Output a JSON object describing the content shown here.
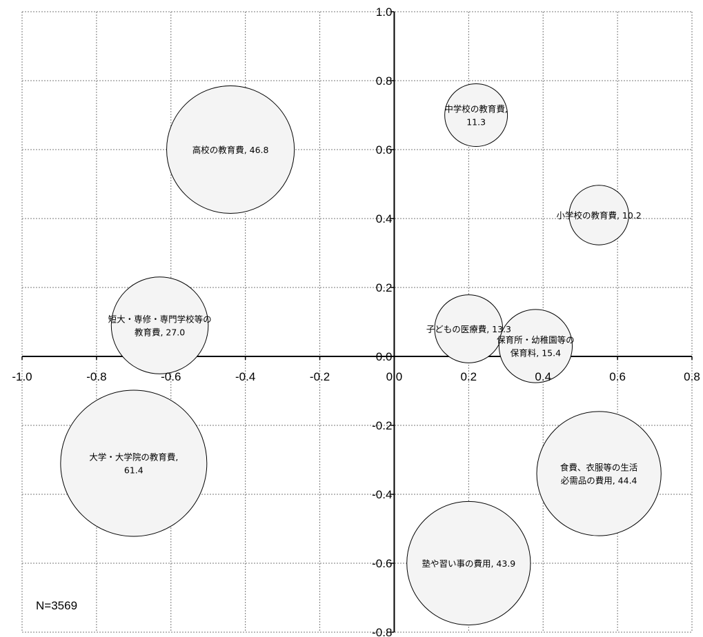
{
  "chart_data": {
    "type": "bubble",
    "title": "",
    "xlabel": "",
    "ylabel": "",
    "xlim": [
      -1.0,
      0.8
    ],
    "ylim": [
      -0.8,
      1.0
    ],
    "x_ticks": [
      "-1.0",
      "-0.8",
      "-0.6",
      "-0.4",
      "-0.2",
      "0.0",
      "0.2",
      "0.4",
      "0.6",
      "0.8"
    ],
    "y_ticks": [
      "1.0",
      "0.8",
      "0.6",
      "0.4",
      "0.2",
      "0.0",
      "-0.2",
      "-0.4",
      "-0.6",
      "-0.8"
    ],
    "grid": true,
    "grid_style": "dotted",
    "series": [
      {
        "bubbles": [
          {
            "label": [
              "高校の教育費, 46.8"
            ],
            "value": 46.8,
            "x": -0.44,
            "y": 0.6
          },
          {
            "label": [
              "中学校の教育費,",
              "11.3"
            ],
            "value": 11.3,
            "x": 0.22,
            "y": 0.7
          },
          {
            "label": [
              "小学校の教育費, 10.2"
            ],
            "value": 10.2,
            "x": 0.55,
            "y": 0.41
          },
          {
            "label": [
              "短大・専修・専門学校等の",
              "教育費, 27.0"
            ],
            "value": 27.0,
            "x": -0.63,
            "y": 0.09
          },
          {
            "label": [
              "子どもの医療費, 13.3"
            ],
            "value": 13.3,
            "x": 0.2,
            "y": 0.08
          },
          {
            "label": [
              "保育所・幼稚園等の",
              "保育料, 15.4"
            ],
            "value": 15.4,
            "x": 0.38,
            "y": 0.03
          },
          {
            "label": [
              "大学・大学院の教育費,",
              "61.4"
            ],
            "value": 61.4,
            "x": -0.7,
            "y": -0.31
          },
          {
            "label": [
              "食費、衣服等の生活",
              "必需品の費用, 44.4"
            ],
            "value": 44.4,
            "x": 0.55,
            "y": -0.34
          },
          {
            "label": [
              "塾や習い事の費用, 43.9"
            ],
            "value": 43.9,
            "x": 0.2,
            "y": -0.6
          }
        ]
      }
    ],
    "bubble_fill": "#f4f4f4",
    "bubble_stroke": "#000000",
    "annotation": "N=3569"
  }
}
